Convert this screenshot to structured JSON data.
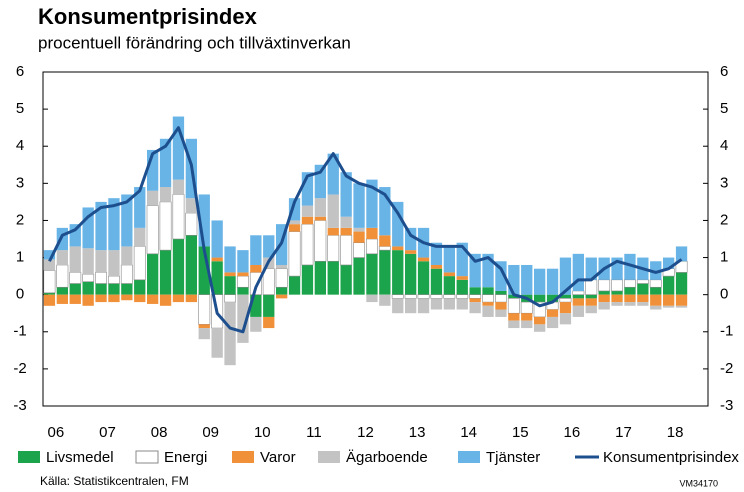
{
  "chart_data": {
    "type": "bar",
    "stacked": true,
    "title": "Konsumentprisindex",
    "subtitle": "procentuell förändring och tillväxtinverkan",
    "source": "Källa: Statistikcentralen, FM",
    "code": "VM34170",
    "categories": [
      "06",
      null,
      null,
      null,
      "07",
      null,
      null,
      null,
      "08",
      null,
      null,
      null,
      "09",
      null,
      null,
      null,
      "10",
      null,
      null,
      null,
      "11",
      null,
      null,
      null,
      "12",
      null,
      null,
      null,
      "13",
      null,
      null,
      null,
      "14",
      null,
      null,
      null,
      "15",
      null,
      null,
      null,
      "16",
      null,
      null,
      null,
      "17",
      null,
      null,
      null,
      "18",
      null
    ],
    "ylim": [
      -3,
      6
    ],
    "yticks": [
      -3,
      -2,
      -1,
      0,
      1,
      2,
      3,
      4,
      5,
      6
    ],
    "right_axis": true,
    "grid": false,
    "series": [
      {
        "name": "Livsmedel",
        "color": "#1ba44b",
        "values": [
          0.05,
          0.2,
          0.3,
          0.35,
          0.3,
          0.3,
          0.3,
          0.4,
          1.1,
          1.2,
          1.5,
          1.6,
          1.3,
          0.9,
          0.5,
          0.2,
          -0.6,
          -0.6,
          0.2,
          0.5,
          0.8,
          0.9,
          0.9,
          0.8,
          1.0,
          1.1,
          1.2,
          1.2,
          1.1,
          0.9,
          0.7,
          0.5,
          0.4,
          0.2,
          0.2,
          0.1,
          -0.1,
          -0.2,
          -0.2,
          -0.2,
          -0.1,
          -0.1,
          -0.1,
          0.1,
          0.1,
          0.2,
          0.3,
          0.2,
          0.5,
          0.6
        ]
      },
      {
        "name": "Energi",
        "color": "#ffffff",
        "values": [
          0.6,
          0.6,
          0.3,
          0.2,
          0.3,
          0.2,
          0.5,
          0.9,
          1.3,
          1.3,
          1.2,
          0.6,
          -0.8,
          -0.9,
          -0.2,
          0.3,
          0.6,
          0.7,
          0.5,
          1.2,
          1.1,
          1.1,
          0.7,
          0.8,
          0.4,
          0.4,
          0.1,
          -0.1,
          -0.1,
          -0.1,
          -0.1,
          -0.1,
          -0.1,
          -0.1,
          -0.2,
          -0.2,
          -0.4,
          -0.3,
          -0.4,
          -0.2,
          -0.1,
          0.1,
          0.4,
          0.3,
          0.3,
          0.2,
          0.1,
          0.2,
          0.2,
          0.3
        ]
      },
      {
        "name": "Varor",
        "color": "#f0913a",
        "values": [
          -0.3,
          -0.25,
          -0.25,
          -0.3,
          -0.2,
          -0.2,
          -0.15,
          -0.2,
          -0.25,
          -0.3,
          -0.2,
          -0.2,
          -0.1,
          0.1,
          0.1,
          0.1,
          0.2,
          -0.3,
          -0.1,
          0.2,
          0.2,
          0.1,
          0.2,
          0.2,
          0.3,
          0.3,
          0.3,
          0.1,
          0.1,
          0.1,
          0.1,
          0.1,
          0.1,
          -0.1,
          -0.1,
          -0.2,
          -0.2,
          -0.2,
          -0.2,
          -0.2,
          -0.3,
          -0.2,
          -0.2,
          -0.2,
          -0.2,
          -0.2,
          -0.2,
          -0.3,
          -0.3,
          -0.3
        ]
      },
      {
        "name": "Ägarboende",
        "color": "#c3c3c3",
        "values": [
          0.3,
          0.4,
          0.7,
          0.7,
          0.6,
          0.7,
          0.5,
          0.5,
          0.4,
          0.4,
          0.4,
          0.4,
          -0.3,
          -0.8,
          -1.7,
          -1.3,
          -0.4,
          0.3,
          0.1,
          0.1,
          0.3,
          0.5,
          0.9,
          0.3,
          0.1,
          -0.2,
          -0.3,
          -0.4,
          -0.4,
          -0.4,
          -0.3,
          -0.3,
          -0.3,
          -0.3,
          -0.3,
          -0.2,
          -0.2,
          -0.2,
          -0.2,
          -0.3,
          -0.3,
          -0.3,
          -0.2,
          -0.2,
          -0.1,
          -0.1,
          -0.1,
          -0.1,
          -0.05,
          -0.05
        ]
      },
      {
        "name": "Tjänster",
        "color": "#68b4e6",
        "values": [
          0.25,
          0.6,
          0.6,
          1.1,
          1.3,
          1.4,
          1.4,
          1.1,
          1.1,
          1.3,
          1.7,
          1.6,
          1.4,
          1.0,
          0.7,
          0.6,
          0.8,
          0.6,
          1.1,
          0.6,
          0.9,
          0.9,
          1.1,
          1.2,
          1.2,
          1.3,
          1.3,
          1.2,
          0.6,
          0.8,
          0.6,
          0.7,
          0.9,
          0.9,
          0.9,
          0.8,
          0.8,
          0.8,
          0.7,
          0.7,
          1.0,
          1.0,
          0.6,
          0.6,
          0.6,
          0.7,
          0.6,
          0.5,
          0.3,
          0.4
        ]
      },
      {
        "name": "Konsumentprisindex",
        "type": "line",
        "color": "#1d4f8f",
        "values": [
          0.9,
          1.6,
          1.75,
          2.1,
          2.35,
          2.4,
          2.5,
          2.8,
          3.8,
          4.0,
          4.5,
          3.5,
          1.2,
          -0.5,
          -0.9,
          -1.0,
          0.2,
          0.9,
          1.4,
          2.5,
          3.2,
          3.3,
          3.8,
          3.2,
          3.0,
          2.9,
          2.7,
          2.2,
          1.6,
          1.4,
          1.3,
          1.3,
          1.3,
          0.9,
          1.0,
          0.7,
          0.0,
          -0.1,
          -0.3,
          -0.2,
          0.1,
          0.4,
          0.4,
          0.7,
          0.9,
          0.8,
          0.7,
          0.6,
          0.7,
          0.95
        ]
      }
    ]
  }
}
